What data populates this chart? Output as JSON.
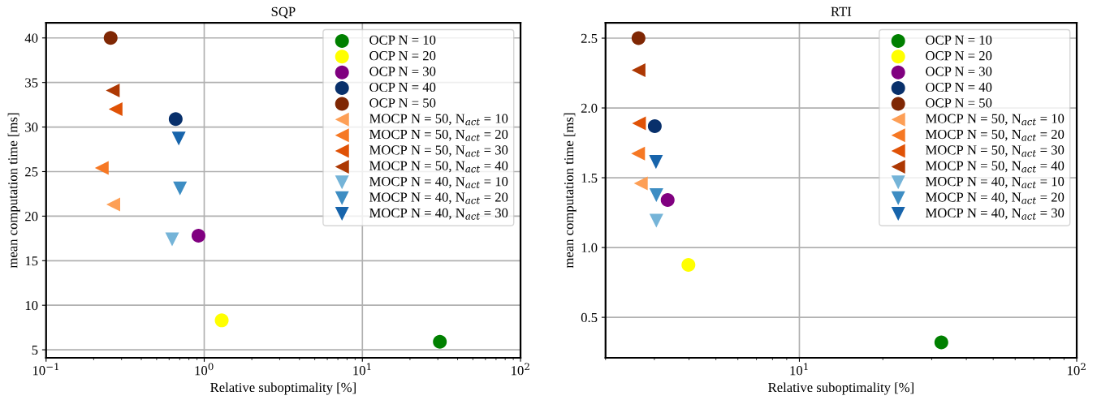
{
  "chart_data": [
    {
      "type": "scatter",
      "title": "SQP",
      "xlabel": "Relative suboptimality [%]",
      "ylabel": "mean computation time [ms]",
      "log": "x",
      "grid": true,
      "legend": "top right",
      "xlim": [
        0.1,
        100
      ],
      "xticks": [
        {
          "value": 0.1,
          "label": "10$^{−1}$"
        },
        {
          "value": 1,
          "label": "10$^{0}$"
        },
        {
          "value": 10,
          "label": "10$^{1}$"
        },
        {
          "value": 100,
          "label": "10$^{2}$"
        }
      ],
      "ylim": [
        4.1,
        41.7
      ],
      "yticks": [
        5,
        10,
        15,
        20,
        25,
        30,
        35,
        40
      ],
      "series": [
        {
          "name": "OCP N = 10",
          "color": "#008000",
          "marker": "circle",
          "x": [
            30.9
          ],
          "values": [
            5.9
          ]
        },
        {
          "name": "OCP N = 20",
          "color": "#ffff00",
          "marker": "circle",
          "x": [
            1.29
          ],
          "values": [
            8.3
          ]
        },
        {
          "name": "OCP N = 30",
          "color": "#800080",
          "marker": "circle",
          "x": [
            0.92
          ],
          "values": [
            17.8
          ]
        },
        {
          "name": "OCP N = 40",
          "color": "#08306b",
          "marker": "circle",
          "x": [
            0.66
          ],
          "values": [
            30.9
          ]
        },
        {
          "name": "OCP N = 50",
          "color": "#7f2704",
          "marker": "circle",
          "x": [
            0.256
          ],
          "values": [
            40.0
          ]
        },
        {
          "name": "MOCP N = 50, N$_{act}$ = 10",
          "color": "#fd9f56",
          "marker": "triangle-left",
          "x": [
            0.266
          ],
          "values": [
            21.3
          ]
        },
        {
          "name": "MOCP N = 50, N$_{act}$ = 20",
          "color": "#f67824",
          "marker": "triangle-left",
          "x": [
            0.225
          ],
          "values": [
            25.4
          ]
        },
        {
          "name": "MOCP N = 50, N$_{act}$ = 30",
          "color": "#e05206",
          "marker": "triangle-left",
          "x": [
            0.275
          ],
          "values": [
            32.0
          ]
        },
        {
          "name": "MOCP N = 50, N$_{act}$ = 40",
          "color": "#ad3803",
          "marker": "triangle-left",
          "x": [
            0.264
          ],
          "values": [
            34.1
          ]
        },
        {
          "name": "MOCP N = 40, N$_{act}$ = 10",
          "color": "#75b4d8",
          "marker": "triangle-down",
          "x": [
            0.627
          ],
          "values": [
            17.4
          ]
        },
        {
          "name": "MOCP N = 40, N$_{act}$ = 20",
          "color": "#3d8dc3",
          "marker": "triangle-down",
          "x": [
            0.703
          ],
          "values": [
            23.1
          ]
        },
        {
          "name": "MOCP N = 40, N$_{act}$ = 30",
          "color": "#1764ab",
          "marker": "triangle-down",
          "x": [
            0.69
          ],
          "values": [
            28.7
          ]
        }
      ]
    },
    {
      "type": "scatter",
      "title": "RTI",
      "xlabel": "Relative suboptimality [%]",
      "ylabel": "mean computation time [ms]",
      "log": "x",
      "grid": true,
      "legend": "top right",
      "xlim": [
        2,
        100
      ],
      "xticks": [
        {
          "value": 10,
          "label": "10$^{1}$"
        },
        {
          "value": 100,
          "label": "10$^{2}$"
        }
      ],
      "ylim": [
        0.21,
        2.61
      ],
      "yticks": [
        0.5,
        {
          "value": 1,
          "label": "1.0"
        },
        1.5,
        {
          "value": 2,
          "label": "2.0"
        },
        2.5
      ],
      "series": [
        {
          "name": "OCP N = 10",
          "color": "#008000",
          "marker": "circle",
          "x": [
            32.5
          ],
          "values": [
            0.32
          ]
        },
        {
          "name": "OCP N = 20",
          "color": "#ffff00",
          "marker": "circle",
          "x": [
            3.98
          ],
          "values": [
            0.876
          ]
        },
        {
          "name": "OCP N = 30",
          "color": "#800080",
          "marker": "circle",
          "x": [
            3.35
          ],
          "values": [
            1.341
          ]
        },
        {
          "name": "OCP N = 40",
          "color": "#08306b",
          "marker": "circle",
          "x": [
            3.01
          ],
          "values": [
            1.869
          ]
        },
        {
          "name": "OCP N = 50",
          "color": "#7f2704",
          "marker": "circle",
          "x": [
            2.63
          ],
          "values": [
            2.5
          ]
        },
        {
          "name": "MOCP N = 50, N$_{act}$ = 10",
          "color": "#fd9f56",
          "marker": "triangle-left",
          "x": [
            2.68
          ],
          "values": [
            1.459
          ]
        },
        {
          "name": "MOCP N = 50, N$_{act}$ = 20",
          "color": "#f67824",
          "marker": "triangle-left",
          "x": [
            2.62
          ],
          "values": [
            1.673
          ]
        },
        {
          "name": "MOCP N = 50, N$_{act}$ = 30",
          "color": "#e05206",
          "marker": "triangle-left",
          "x": [
            2.64
          ],
          "values": [
            1.89
          ]
        },
        {
          "name": "MOCP N = 50, N$_{act}$ = 40",
          "color": "#ad3803",
          "marker": "triangle-left",
          "x": [
            2.63
          ],
          "values": [
            2.27
          ]
        },
        {
          "name": "MOCP N = 40, N$_{act}$ = 10",
          "color": "#75b4d8",
          "marker": "triangle-down",
          "x": [
            3.05
          ],
          "values": [
            1.192
          ]
        },
        {
          "name": "MOCP N = 40, N$_{act}$ = 20",
          "color": "#3d8dc3",
          "marker": "triangle-down",
          "x": [
            3.05
          ],
          "values": [
            1.376
          ]
        },
        {
          "name": "MOCP N = 40, N$_{act}$ = 30",
          "color": "#1764ab",
          "marker": "triangle-down",
          "x": [
            3.04
          ],
          "values": [
            1.613
          ]
        }
      ]
    }
  ]
}
